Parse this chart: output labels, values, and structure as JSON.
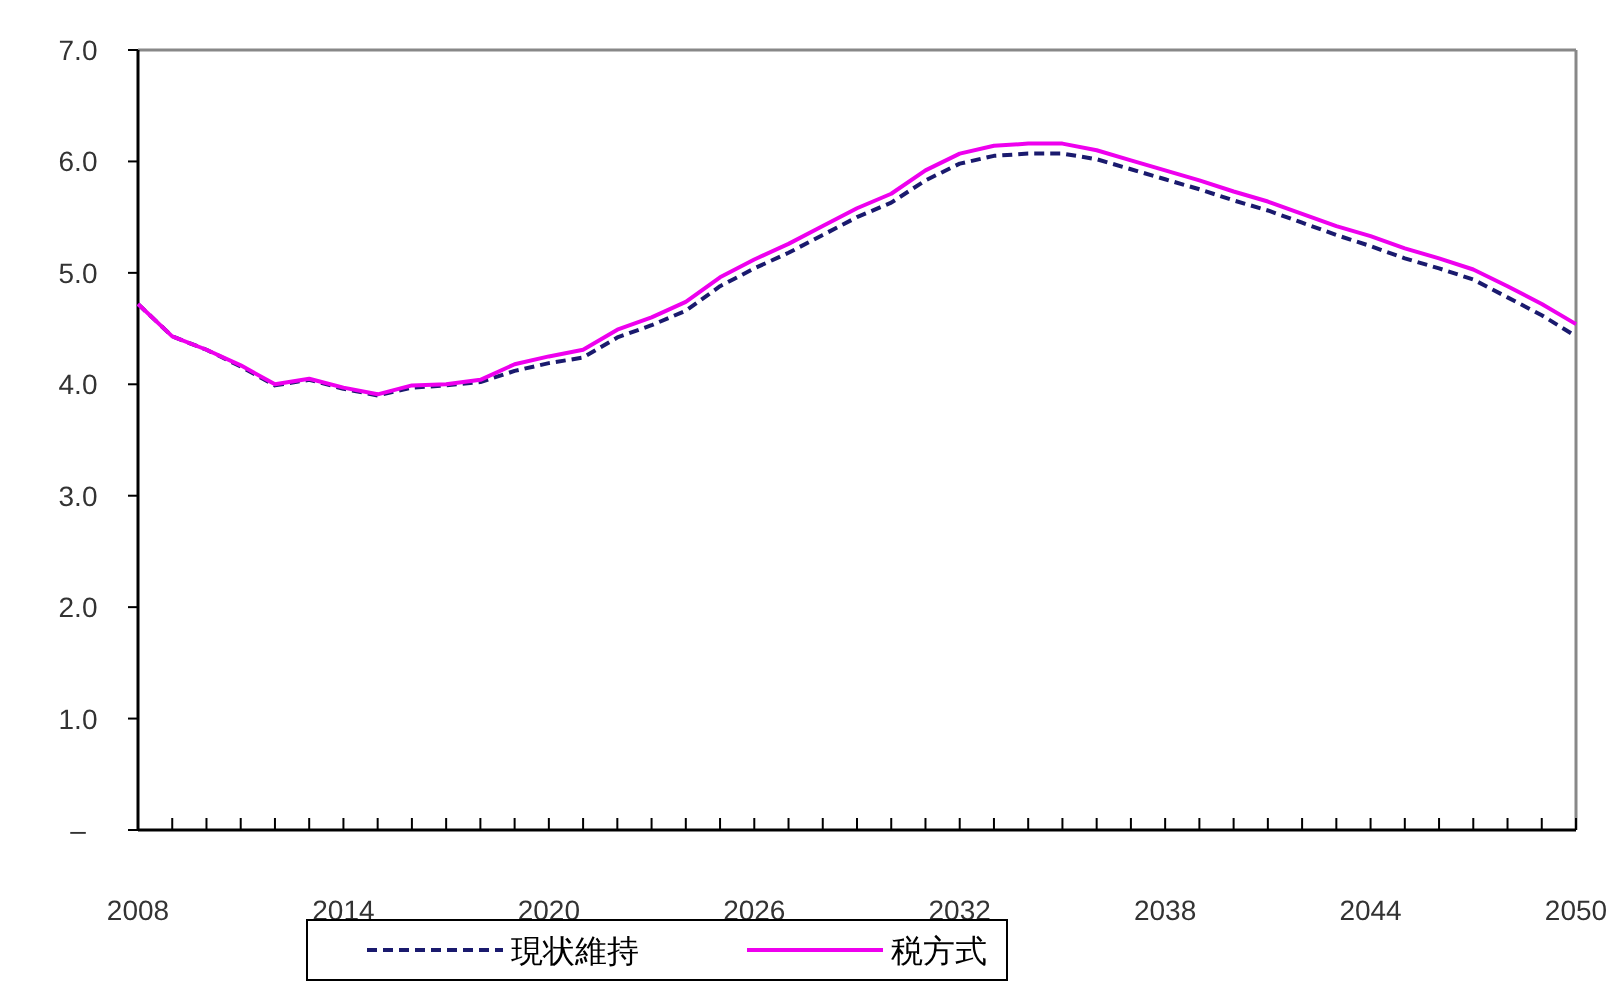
{
  "chart_data": {
    "type": "line",
    "x": [
      2008,
      2009,
      2010,
      2011,
      2012,
      2013,
      2014,
      2015,
      2016,
      2017,
      2018,
      2019,
      2020,
      2021,
      2022,
      2023,
      2024,
      2025,
      2026,
      2027,
      2028,
      2029,
      2030,
      2031,
      2032,
      2033,
      2034,
      2035,
      2036,
      2037,
      2038,
      2039,
      2040,
      2041,
      2042,
      2043,
      2044,
      2045,
      2046,
      2047,
      2048,
      2049,
      2050
    ],
    "series": [
      {
        "name": "現状維持",
        "color": "#1a1a6e",
        "line_style": "dashed",
        "values": [
          4.72,
          4.43,
          4.31,
          4.16,
          3.99,
          4.04,
          3.96,
          3.9,
          3.97,
          3.99,
          4.02,
          4.12,
          4.19,
          4.24,
          4.42,
          4.53,
          4.66,
          4.88,
          5.04,
          5.18,
          5.34,
          5.5,
          5.63,
          5.83,
          5.98,
          6.05,
          6.07,
          6.07,
          6.02,
          5.93,
          5.84,
          5.75,
          5.65,
          5.56,
          5.45,
          5.34,
          5.24,
          5.13,
          5.04,
          4.94,
          4.78,
          4.62,
          4.43
        ]
      },
      {
        "name": "税方式",
        "color": "#ee00ee",
        "line_style": "solid",
        "values": [
          4.72,
          4.43,
          4.31,
          4.17,
          4.0,
          4.05,
          3.97,
          3.91,
          3.99,
          4.0,
          4.04,
          4.18,
          4.25,
          4.31,
          4.49,
          4.6,
          4.74,
          4.96,
          5.12,
          5.26,
          5.42,
          5.58,
          5.71,
          5.92,
          6.07,
          6.14,
          6.16,
          6.16,
          6.1,
          6.01,
          5.92,
          5.83,
          5.73,
          5.64,
          5.53,
          5.42,
          5.33,
          5.22,
          5.13,
          5.03,
          4.88,
          4.72,
          4.54
        ]
      }
    ],
    "xlim": [
      2008,
      2050
    ],
    "xticks": [
      2008,
      {
        "value": 2009,
        "label": null
      },
      {
        "value": 2010,
        "label": null
      },
      {
        "value": 2011,
        "label": null
      },
      {
        "value": 2012,
        "label": null
      },
      {
        "value": 2013,
        "label": null
      },
      2014,
      {
        "value": 2015,
        "label": null
      },
      {
        "value": 2016,
        "label": null
      },
      {
        "value": 2017,
        "label": null
      },
      {
        "value": 2018,
        "label": null
      },
      {
        "value": 2019,
        "label": null
      },
      2020,
      {
        "value": 2021,
        "label": null
      },
      {
        "value": 2022,
        "label": null
      },
      {
        "value": 2023,
        "label": null
      },
      {
        "value": 2024,
        "label": null
      },
      {
        "value": 2025,
        "label": null
      },
      2026,
      {
        "value": 2027,
        "label": null
      },
      {
        "value": 2028,
        "label": null
      },
      {
        "value": 2029,
        "label": null
      },
      {
        "value": 2030,
        "label": null
      },
      {
        "value": 2031,
        "label": null
      },
      2032,
      {
        "value": 2033,
        "label": null
      },
      {
        "value": 2034,
        "label": null
      },
      {
        "value": 2035,
        "label": null
      },
      {
        "value": 2036,
        "label": null
      },
      {
        "value": 2037,
        "label": null
      },
      2038,
      {
        "value": 2039,
        "label": null
      },
      {
        "value": 2040,
        "label": null
      },
      {
        "value": 2041,
        "label": null
      },
      {
        "value": 2042,
        "label": null
      },
      {
        "value": 2043,
        "label": null
      },
      2044,
      {
        "value": 2045,
        "label": null
      },
      {
        "value": 2046,
        "label": null
      },
      {
        "value": 2047,
        "label": null
      },
      {
        "value": 2048,
        "label": null
      },
      {
        "value": 2049,
        "label": null
      },
      2050
    ],
    "ylim": [
      0,
      7
    ],
    "yticks": [
      {
        "value": 0,
        "label": "–"
      },
      {
        "value": 1,
        "label": "1.0"
      },
      {
        "value": 2,
        "label": "2.0"
      },
      {
        "value": 3,
        "label": "3.0"
      },
      {
        "value": 4,
        "label": "4.0"
      },
      {
        "value": 5,
        "label": "5.0"
      },
      {
        "value": 6,
        "label": "6.0"
      },
      {
        "value": 7,
        "label": "7.0"
      }
    ],
    "legend": "bottom",
    "marker": "none"
  }
}
